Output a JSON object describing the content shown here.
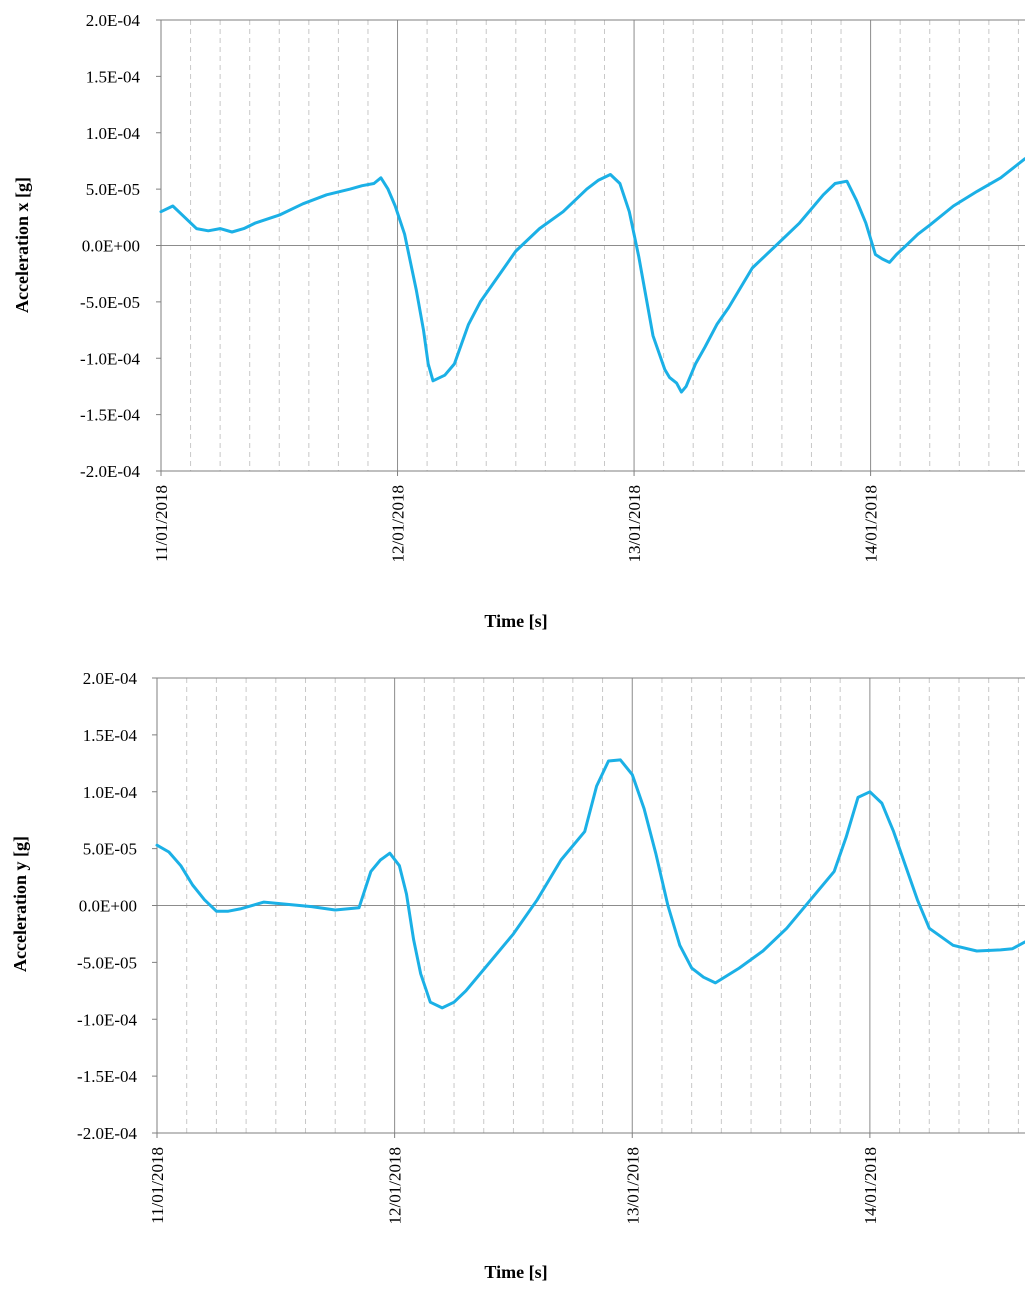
{
  "chart_data": [
    {
      "type": "line",
      "xlabel": "Time [s]",
      "ylabel": "Acceleration x [g]",
      "x_unit": "days",
      "x_tick_labels": [
        "11/01/2018",
        "12/01/2018",
        "13/01/2018",
        "14/01/2018"
      ],
      "x_major_ticks": [
        "11/01/2018",
        "12/01/2018",
        "13/01/2018",
        "14/01/2018"
      ],
      "x_minor_grid": "dashed, every 3 hours",
      "y_tick_labels": [
        "2.0E-04",
        "1.5E-04",
        "1.0E-04",
        "5.0E-05",
        "0.0E+00",
        "-5.0E-05",
        "-1.0E-04",
        "-1.5E-04",
        "-2.0E-04"
      ],
      "ylim": [
        -0.0002,
        0.0002
      ],
      "xlim": [
        "11/01/2018 00:00",
        "14/01/2018 15:40"
      ],
      "grid": true,
      "color": "#1bb0e6",
      "series": [
        {
          "x": [
            "11/01/2018 00:00",
            "11/01/2018 01:12",
            "11/01/2018 02:24",
            "11/01/2018 03:36",
            "11/01/2018 04:48",
            "11/01/2018 06:00",
            "11/01/2018 07:12",
            "11/01/2018 08:24",
            "11/01/2018 09:36",
            "11/01/2018 12:00",
            "11/01/2018 14:24",
            "11/01/2018 16:48",
            "11/01/2018 19:12",
            "11/01/2018 20:24",
            "11/01/2018 21:36",
            "11/01/2018 22:19",
            "11/01/2018 23:02",
            "11/01/2018 23:46",
            "12/01/2018 00:43",
            "12/01/2018 01:55",
            "12/01/2018 02:38",
            "12/01/2018 03:07",
            "12/01/2018 03:36",
            "12/01/2018 04:48",
            "12/01/2018 05:46",
            "12/01/2018 07:12",
            "12/01/2018 08:24",
            "12/01/2018 09:36",
            "12/01/2018 12:00",
            "12/01/2018 14:24",
            "12/01/2018 16:48",
            "12/01/2018 19:12",
            "12/01/2018 20:24",
            "12/01/2018 21:36",
            "12/01/2018 22:34",
            "12/01/2018 23:31",
            "13/01/2018 00:29",
            "13/01/2018 01:55",
            "13/01/2018 03:07",
            "13/01/2018 03:36",
            "13/01/2018 04:19",
            "13/01/2018 04:48",
            "13/01/2018 05:17",
            "13/01/2018 06:14",
            "13/01/2018 07:12",
            "13/01/2018 08:24",
            "13/01/2018 09:36",
            "13/01/2018 12:00",
            "13/01/2018 14:24",
            "13/01/2018 16:48",
            "13/01/2018 19:12",
            "13/01/2018 20:24",
            "13/01/2018 21:36",
            "13/01/2018 22:34",
            "13/01/2018 23:31",
            "14/01/2018 00:29",
            "14/01/2018 01:12",
            "14/01/2018 01:55",
            "14/01/2018 02:38",
            "14/01/2018 03:36",
            "14/01/2018 04:48",
            "14/01/2018 06:00",
            "14/01/2018 08:24",
            "14/01/2018 10:48",
            "14/01/2018 13:12",
            "14/01/2018 15:40"
          ],
          "values": [
            3e-05,
            3.5e-05,
            2.5e-05,
            1.5e-05,
            1.3e-05,
            1.5e-05,
            1.2e-05,
            1.5e-05,
            2e-05,
            2.7e-05,
            3.7e-05,
            4.5e-05,
            5e-05,
            5.3e-05,
            5.5e-05,
            6e-05,
            5e-05,
            3.5e-05,
            1e-05,
            -4e-05,
            -7.5e-05,
            -0.000105,
            -0.00012,
            -0.000115,
            -0.000105,
            -7e-05,
            -5e-05,
            -3.5e-05,
            -5e-06,
            1.5e-05,
            3e-05,
            5e-05,
            5.8e-05,
            6.3e-05,
            5.5e-05,
            3e-05,
            -1e-05,
            -8e-05,
            -0.00011,
            -0.000117,
            -0.000122,
            -0.00013,
            -0.000125,
            -0.000105,
            -9e-05,
            -7e-05,
            -5.5e-05,
            -2e-05,
            0.0,
            2e-05,
            4.5e-05,
            5.5e-05,
            5.7e-05,
            4e-05,
            2e-05,
            -8e-06,
            -1.2e-05,
            -1.5e-05,
            -8e-06,
            0.0,
            1e-05,
            1.8e-05,
            3.5e-05,
            4.8e-05,
            6e-05,
            7.7e-05
          ]
        }
      ]
    },
    {
      "type": "line",
      "xlabel": "Time [s]",
      "ylabel": "Acceleration y [g]",
      "x_unit": "days",
      "x_tick_labels": [
        "11/01/2018",
        "12/01/2018",
        "13/01/2018",
        "14/01/2018"
      ],
      "x_major_ticks": [
        "11/01/2018",
        "12/01/2018",
        "13/01/2018",
        "14/01/2018"
      ],
      "x_minor_grid": "dashed, every 3 hours",
      "y_tick_labels": [
        "2.0E-04",
        "1.5E-04",
        "1.0E-04",
        "5.0E-05",
        "0.0E+00",
        "-5.0E-05",
        "-1.0E-04",
        "-1.5E-04",
        "-2.0E-04"
      ],
      "ylim": [
        -0.0002,
        0.0002
      ],
      "xlim": [
        "11/01/2018 00:00",
        "14/01/2018 15:40"
      ],
      "grid": true,
      "color": "#1bb0e6",
      "series": [
        {
          "x": [
            "11/01/2018 00:00",
            "11/01/2018 01:12",
            "11/01/2018 02:24",
            "11/01/2018 03:36",
            "11/01/2018 04:48",
            "11/01/2018 06:00",
            "11/01/2018 07:12",
            "11/01/2018 08:24",
            "11/01/2018 10:48",
            "11/01/2018 13:12",
            "11/01/2018 15:36",
            "11/01/2018 18:00",
            "11/01/2018 20:24",
            "11/01/2018 21:36",
            "11/01/2018 22:34",
            "11/01/2018 23:31",
            "12/01/2018 00:29",
            "12/01/2018 01:12",
            "12/01/2018 01:55",
            "12/01/2018 02:38",
            "12/01/2018 03:36",
            "12/01/2018 04:48",
            "12/01/2018 06:00",
            "12/01/2018 07:12",
            "12/01/2018 09:36",
            "12/01/2018 12:00",
            "12/01/2018 14:24",
            "12/01/2018 16:48",
            "12/01/2018 19:12",
            "12/01/2018 20:24",
            "12/01/2018 21:36",
            "12/01/2018 22:48",
            "13/01/2018 00:00",
            "13/01/2018 01:12",
            "13/01/2018 02:24",
            "13/01/2018 03:36",
            "13/01/2018 04:48",
            "13/01/2018 06:00",
            "13/01/2018 07:12",
            "13/01/2018 08:24",
            "13/01/2018 10:48",
            "13/01/2018 13:12",
            "13/01/2018 15:36",
            "13/01/2018 18:00",
            "13/01/2018 20:24",
            "13/01/2018 21:36",
            "13/01/2018 22:48",
            "14/01/2018 00:00",
            "14/01/2018 01:12",
            "14/01/2018 02:24",
            "14/01/2018 03:36",
            "14/01/2018 04:48",
            "14/01/2018 06:00",
            "14/01/2018 08:24",
            "14/01/2018 10:48",
            "14/01/2018 13:12",
            "14/01/2018 14:24",
            "14/01/2018 15:40"
          ],
          "values": [
            5.3e-05,
            4.7e-05,
            3.5e-05,
            1.8e-05,
            5e-06,
            -5e-06,
            -5e-06,
            -3e-06,
            3e-06,
            1e-06,
            -1e-06,
            -4e-06,
            -2e-06,
            3e-05,
            4e-05,
            4.6e-05,
            3.5e-05,
            1e-05,
            -3e-05,
            -6e-05,
            -8.5e-05,
            -9e-05,
            -8.5e-05,
            -7.5e-05,
            -5e-05,
            -2.5e-05,
            5e-06,
            4e-05,
            6.5e-05,
            0.000105,
            0.000127,
            0.000128,
            0.000115,
            8.5e-05,
            4.5e-05,
            0.0,
            -3.5e-05,
            -5.5e-05,
            -6.3e-05,
            -6.8e-05,
            -5.5e-05,
            -4e-05,
            -2e-05,
            5e-06,
            3e-05,
            6e-05,
            9.5e-05,
            0.0001,
            9e-05,
            6.5e-05,
            3.5e-05,
            5e-06,
            -2e-05,
            -3.5e-05,
            -4e-05,
            -3.9e-05,
            -3.8e-05,
            -3.2e-05
          ]
        }
      ]
    }
  ]
}
